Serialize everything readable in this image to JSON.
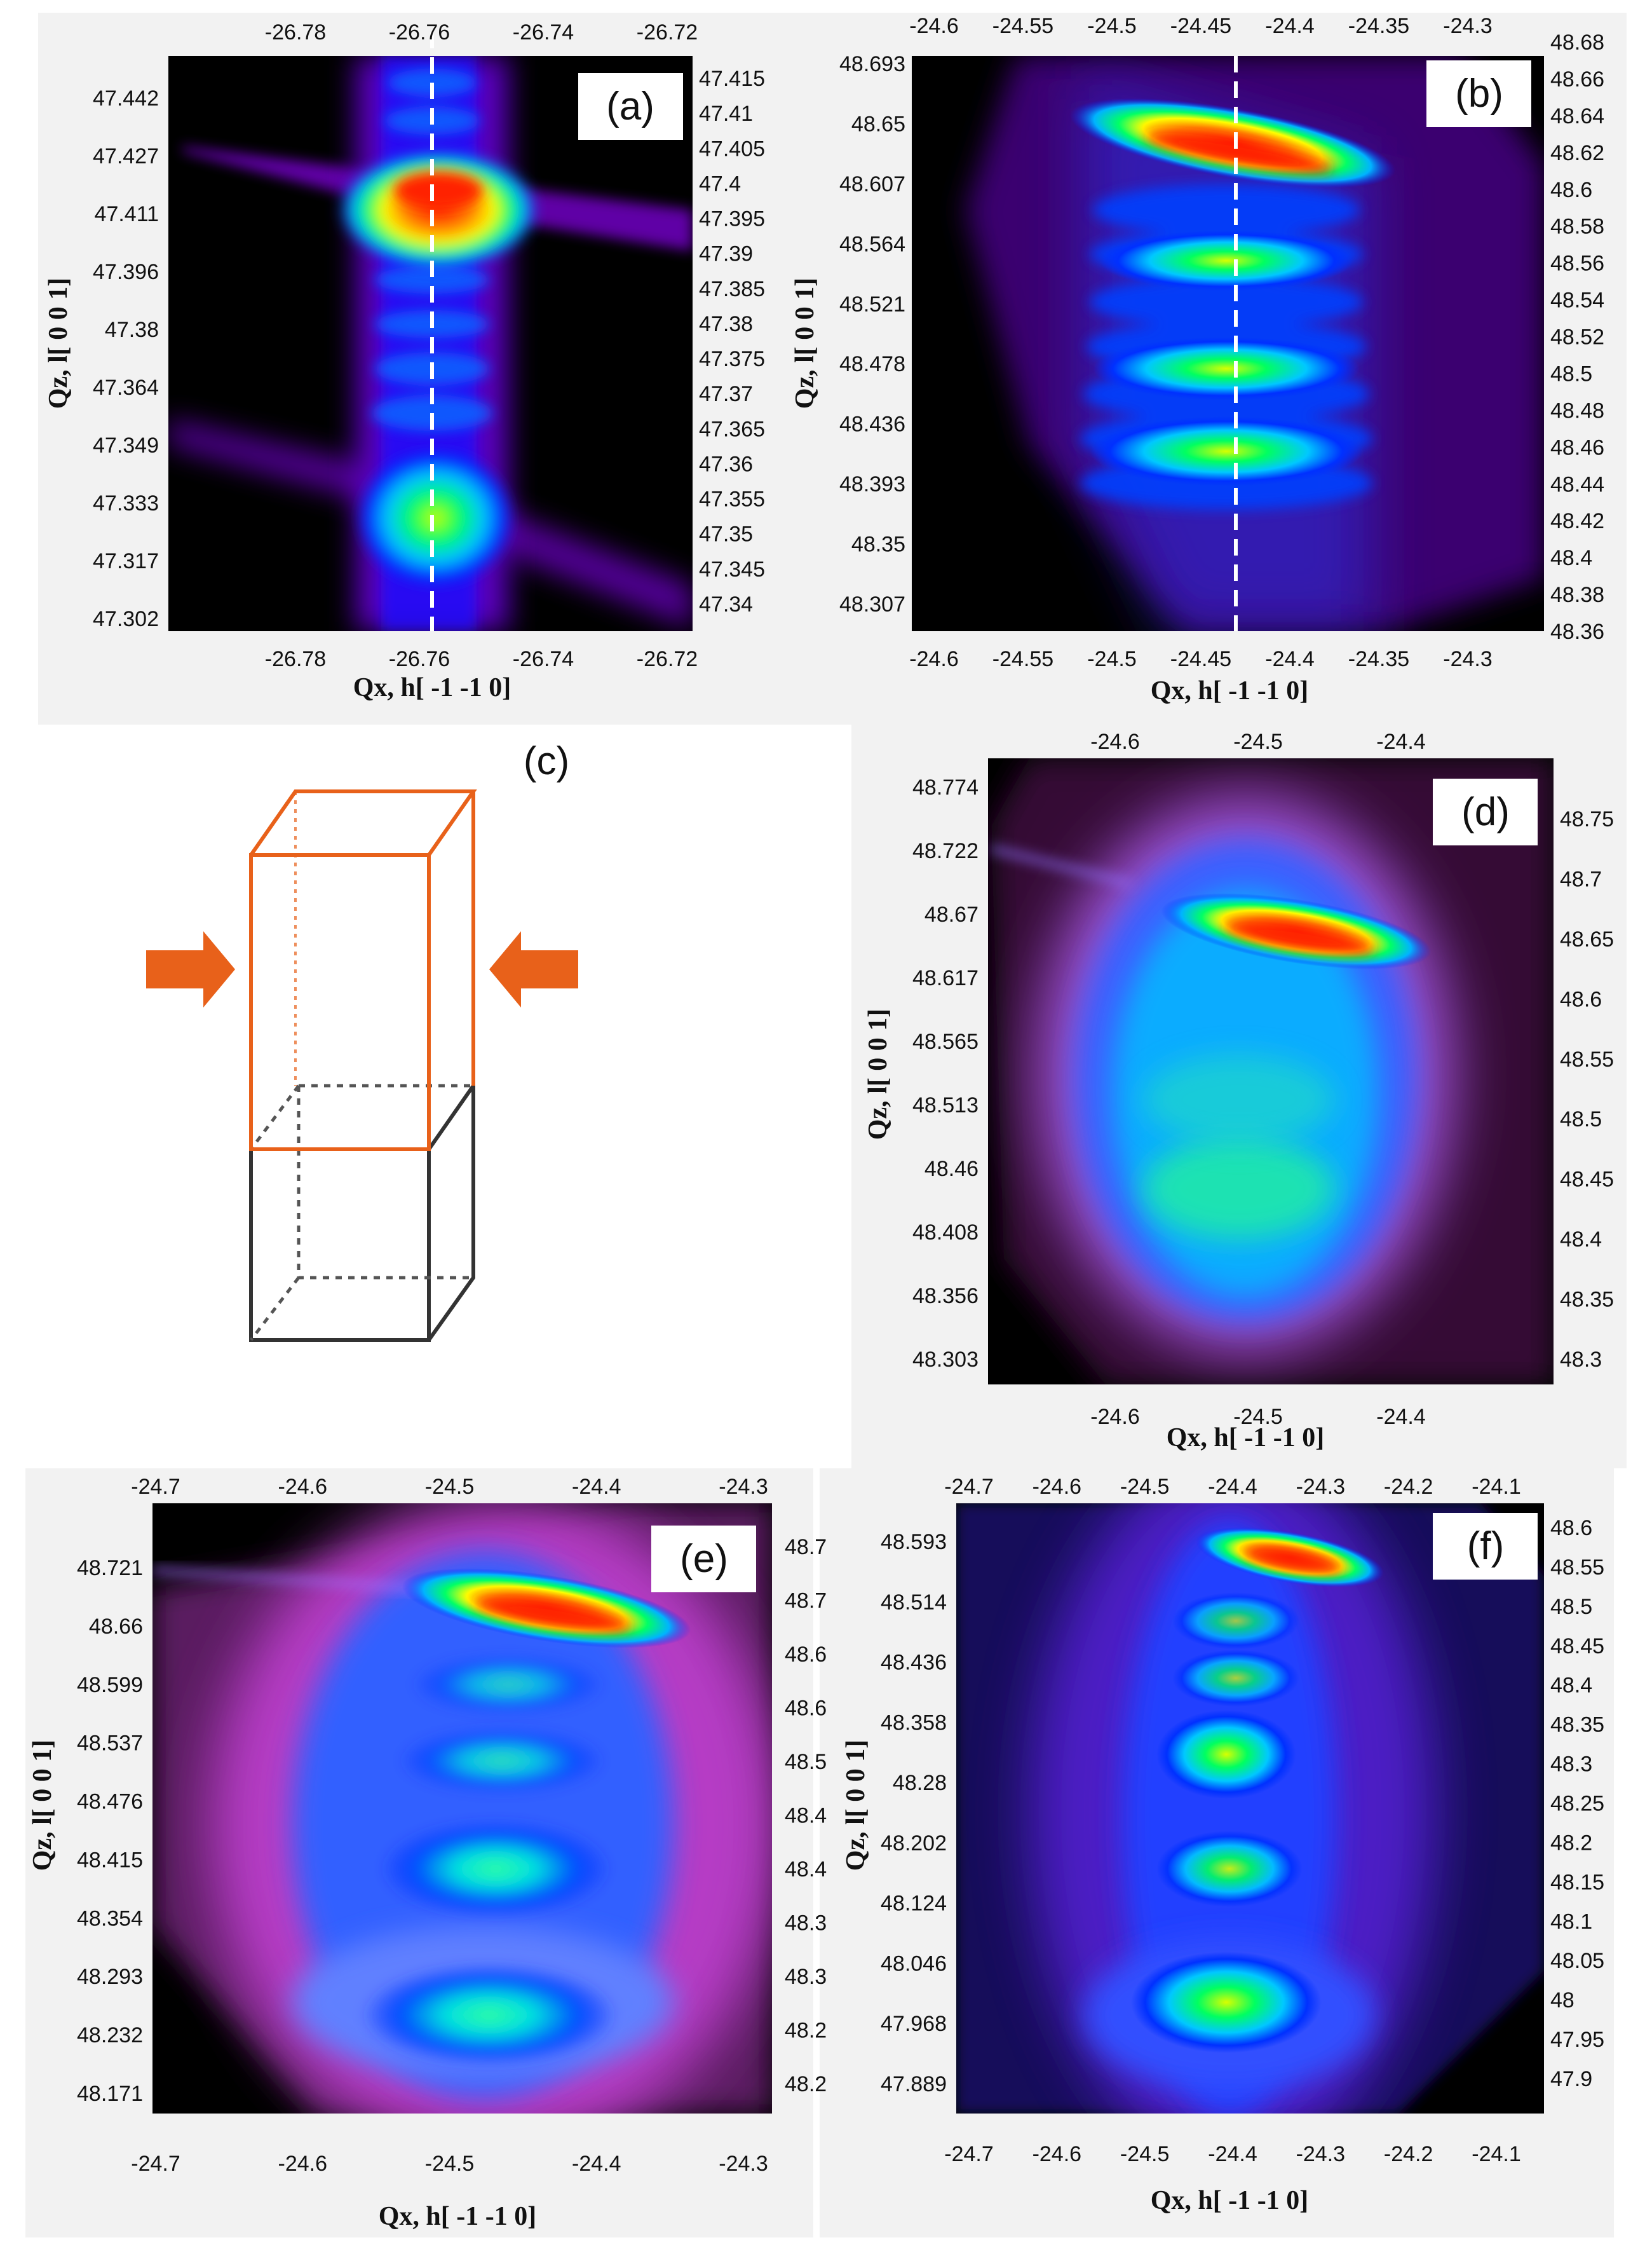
{
  "chart_data": [
    {
      "type": "heatmap",
      "label": "(a)",
      "xlabel": "Qx, h[ -1 -1 0]",
      "ylabel": "Qz, l[ 0 0 1]",
      "x_ticks_bottom": [
        "-26.78",
        "-26.76",
        "-26.74",
        "-26.72"
      ],
      "x_ticks_top": [
        "-26.78",
        "-26.76",
        "-26.74",
        "-26.72"
      ],
      "y_ticks_left": [
        "47.442",
        "47.427",
        "47.411",
        "47.396",
        "47.38",
        "47.364",
        "47.349",
        "47.333",
        "47.317",
        "47.302"
      ],
      "y_ticks_right": [
        "47.415",
        "47.41",
        "47.405",
        "47.4",
        "47.395",
        "47.39",
        "47.385",
        "47.38",
        "47.375",
        "47.37",
        "47.365",
        "47.36",
        "47.355",
        "47.35",
        "47.345",
        "47.34"
      ],
      "dashed_line_x": -26.76,
      "colormap": [
        "#000000",
        "#6a00a8",
        "#0018ff",
        "#00d0ff",
        "#00ff66",
        "#ffff00",
        "#ff0000"
      ]
    },
    {
      "type": "heatmap",
      "label": "(b)",
      "xlabel": "Qx, h[ -1 -1 0]",
      "ylabel": "Qz, l[ 0 0 1]",
      "x_ticks_bottom": [
        "-24.6",
        "-24.55",
        "-24.5",
        "-24.45",
        "-24.4",
        "-24.35",
        "-24.3"
      ],
      "x_ticks_top": [
        "-24.6",
        "-24.55",
        "-24.5",
        "-24.45",
        "-24.4",
        "-24.35",
        "-24.3"
      ],
      "y_ticks_left": [
        "48.693",
        "48.65",
        "48.607",
        "48.564",
        "48.521",
        "48.478",
        "48.436",
        "48.393",
        "48.35",
        "48.307"
      ],
      "y_ticks_right": [
        "48.68",
        "48.66",
        "48.64",
        "48.62",
        "48.6",
        "48.58",
        "48.56",
        "48.54",
        "48.52",
        "48.5",
        "48.48",
        "48.46",
        "48.44",
        "48.42",
        "48.4",
        "48.38",
        "48.36"
      ],
      "dashed_line_x": -24.43
    },
    {
      "type": "diagram",
      "label": "(c)"
    },
    {
      "type": "heatmap",
      "label": "(d)",
      "xlabel": "Qx, h[ -1 -1 0]",
      "ylabel": "Qz, l[ 0 0 1]",
      "x_ticks_bottom": [
        "-24.6",
        "-24.5",
        "-24.4"
      ],
      "x_ticks_top": [
        "-24.6",
        "-24.5",
        "-24.4"
      ],
      "y_ticks_left": [
        "48.774",
        "48.722",
        "48.67",
        "48.617",
        "48.565",
        "48.513",
        "48.46",
        "48.408",
        "48.356",
        "48.303"
      ],
      "y_ticks_right": [
        "48.75",
        "48.7",
        "48.65",
        "48.6",
        "48.55",
        "48.5",
        "48.45",
        "48.4",
        "48.35",
        "48.3"
      ]
    },
    {
      "type": "heatmap",
      "label": "(e)",
      "xlabel": "Qx, h[ -1 -1 0]",
      "ylabel": "Qz, l[ 0 0 1]",
      "x_ticks_bottom": [
        "-24.7",
        "-24.6",
        "-24.5",
        "-24.4",
        "-24.3"
      ],
      "x_ticks_top": [
        "-24.7",
        "-24.6",
        "-24.5",
        "-24.4",
        "-24.3"
      ],
      "y_ticks_left": [
        "48.721",
        "48.66",
        "48.599",
        "48.537",
        "48.476",
        "48.415",
        "48.354",
        "48.293",
        "48.232",
        "48.171"
      ],
      "y_ticks_right": [
        "48.7",
        "48.7",
        "48.6",
        "48.6",
        "48.5",
        "48.4",
        "48.4",
        "48.3",
        "48.3",
        "48.2",
        "48.2"
      ]
    },
    {
      "type": "heatmap",
      "label": "(f)",
      "xlabel": "Qx, h[ -1 -1 0]",
      "ylabel": "Qz, l[ 0 0 1]",
      "x_ticks_bottom": [
        "-24.7",
        "-24.6",
        "-24.5",
        "-24.4",
        "-24.3",
        "-24.2",
        "-24.1"
      ],
      "x_ticks_top": [
        "-24.7",
        "-24.6",
        "-24.5",
        "-24.4",
        "-24.3",
        "-24.2",
        "-24.1"
      ],
      "y_ticks_left": [
        "48.593",
        "48.514",
        "48.436",
        "48.358",
        "48.28",
        "48.202",
        "48.124",
        "48.046",
        "47.968",
        "47.889"
      ],
      "y_ticks_right": [
        "48.6",
        "48.55",
        "48.5",
        "48.45",
        "48.4",
        "48.35",
        "48.3",
        "48.25",
        "48.2",
        "48.15",
        "48.1",
        "48.05",
        "48",
        "47.95",
        "47.9"
      ]
    }
  ]
}
